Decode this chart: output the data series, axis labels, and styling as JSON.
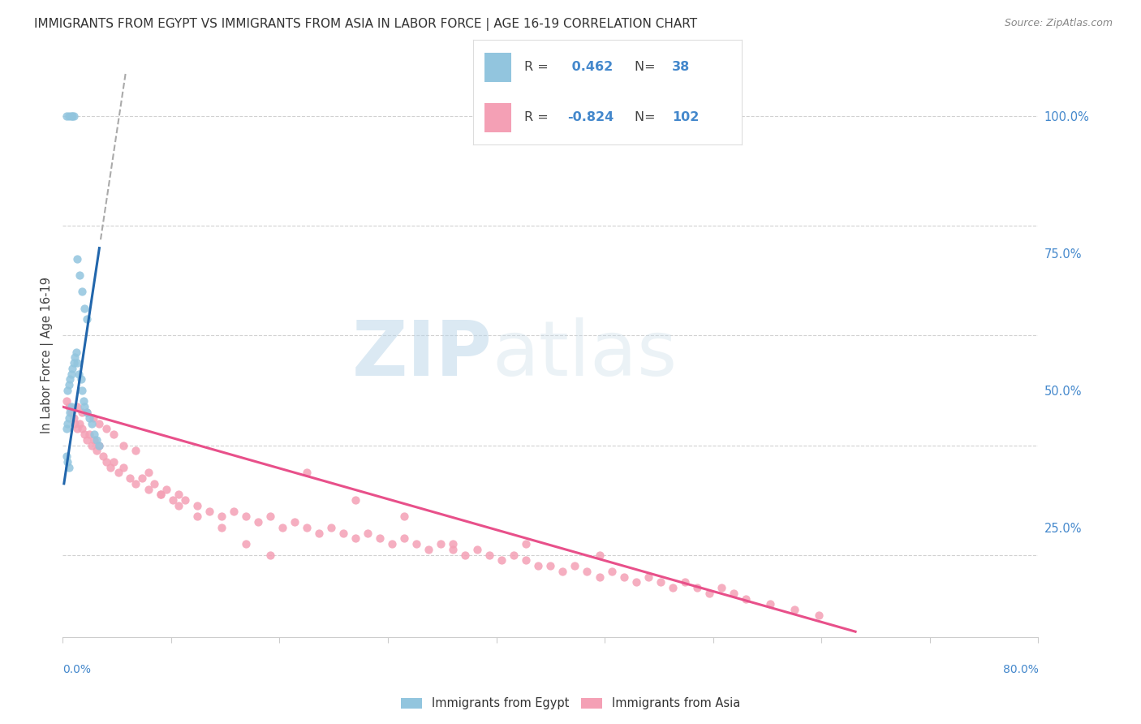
{
  "title": "IMMIGRANTS FROM EGYPT VS IMMIGRANTS FROM ASIA IN LABOR FORCE | AGE 16-19 CORRELATION CHART",
  "source": "Source: ZipAtlas.com",
  "ylabel": "In Labor Force | Age 16-19",
  "right_yticks": [
    "100.0%",
    "75.0%",
    "50.0%",
    "25.0%"
  ],
  "right_ytick_vals": [
    1.0,
    0.75,
    0.5,
    0.25
  ],
  "xmin": 0.0,
  "xmax": 0.8,
  "ymin": 0.05,
  "ymax": 1.08,
  "legend_r_egypt": "0.462",
  "legend_n_egypt": "38",
  "legend_r_asia": "-0.824",
  "legend_n_asia": "102",
  "color_egypt": "#92c5de",
  "color_egypt_line": "#2166ac",
  "color_asia": "#f4a0b5",
  "color_asia_line": "#e8508a",
  "watermark_zip": "ZIP",
  "watermark_atlas": "atlas",
  "egypt_x": [
    0.003,
    0.005,
    0.007,
    0.008,
    0.009,
    0.003,
    0.004,
    0.005,
    0.006,
    0.007,
    0.004,
    0.005,
    0.006,
    0.007,
    0.008,
    0.009,
    0.01,
    0.011,
    0.012,
    0.013,
    0.015,
    0.016,
    0.017,
    0.018,
    0.02,
    0.022,
    0.024,
    0.026,
    0.028,
    0.03,
    0.003,
    0.004,
    0.005,
    0.012,
    0.014,
    0.016,
    0.018,
    0.02
  ],
  "egypt_y": [
    1.0,
    1.0,
    1.0,
    1.0,
    1.0,
    0.43,
    0.44,
    0.45,
    0.46,
    0.47,
    0.5,
    0.51,
    0.52,
    0.53,
    0.54,
    0.55,
    0.56,
    0.57,
    0.55,
    0.53,
    0.52,
    0.5,
    0.48,
    0.47,
    0.46,
    0.45,
    0.44,
    0.42,
    0.41,
    0.4,
    0.38,
    0.37,
    0.36,
    0.74,
    0.71,
    0.68,
    0.65,
    0.63
  ],
  "asia_x": [
    0.003,
    0.005,
    0.007,
    0.009,
    0.01,
    0.012,
    0.014,
    0.016,
    0.018,
    0.02,
    0.022,
    0.024,
    0.026,
    0.028,
    0.03,
    0.033,
    0.036,
    0.039,
    0.042,
    0.046,
    0.05,
    0.055,
    0.06,
    0.065,
    0.07,
    0.075,
    0.08,
    0.085,
    0.09,
    0.095,
    0.1,
    0.11,
    0.12,
    0.13,
    0.14,
    0.15,
    0.16,
    0.17,
    0.18,
    0.19,
    0.2,
    0.21,
    0.22,
    0.23,
    0.24,
    0.25,
    0.26,
    0.27,
    0.28,
    0.29,
    0.3,
    0.31,
    0.32,
    0.33,
    0.34,
    0.35,
    0.36,
    0.37,
    0.38,
    0.39,
    0.4,
    0.41,
    0.42,
    0.43,
    0.44,
    0.45,
    0.46,
    0.47,
    0.48,
    0.49,
    0.5,
    0.51,
    0.52,
    0.53,
    0.54,
    0.55,
    0.56,
    0.58,
    0.6,
    0.62,
    0.012,
    0.016,
    0.02,
    0.025,
    0.03,
    0.036,
    0.042,
    0.05,
    0.06,
    0.07,
    0.08,
    0.095,
    0.11,
    0.13,
    0.15,
    0.17,
    0.2,
    0.24,
    0.28,
    0.32,
    0.38,
    0.44
  ],
  "asia_y": [
    0.48,
    0.47,
    0.46,
    0.45,
    0.44,
    0.43,
    0.44,
    0.43,
    0.42,
    0.41,
    0.42,
    0.4,
    0.41,
    0.39,
    0.4,
    0.38,
    0.37,
    0.36,
    0.37,
    0.35,
    0.36,
    0.34,
    0.33,
    0.34,
    0.32,
    0.33,
    0.31,
    0.32,
    0.3,
    0.31,
    0.3,
    0.29,
    0.28,
    0.27,
    0.28,
    0.27,
    0.26,
    0.27,
    0.25,
    0.26,
    0.25,
    0.24,
    0.25,
    0.24,
    0.23,
    0.24,
    0.23,
    0.22,
    0.23,
    0.22,
    0.21,
    0.22,
    0.21,
    0.2,
    0.21,
    0.2,
    0.19,
    0.2,
    0.19,
    0.18,
    0.18,
    0.17,
    0.18,
    0.17,
    0.16,
    0.17,
    0.16,
    0.15,
    0.16,
    0.15,
    0.14,
    0.15,
    0.14,
    0.13,
    0.14,
    0.13,
    0.12,
    0.11,
    0.1,
    0.09,
    0.47,
    0.46,
    0.46,
    0.45,
    0.44,
    0.43,
    0.42,
    0.4,
    0.39,
    0.35,
    0.31,
    0.29,
    0.27,
    0.25,
    0.22,
    0.2,
    0.35,
    0.3,
    0.27,
    0.22,
    0.22,
    0.2
  ]
}
